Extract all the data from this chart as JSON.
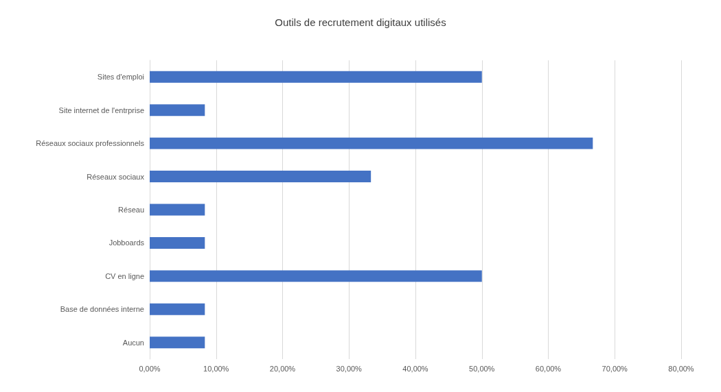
{
  "chart_data": {
    "type": "bar",
    "orientation": "horizontal",
    "title": "Outils de recrutement digitaux utilisés",
    "categories": [
      "Sites d'emploi",
      "Site internet de l'entrprise",
      "Réseaux sociaux professionnels",
      "Réseaux sociaux",
      "Réseau",
      "Jobboards",
      "CV en ligne",
      "Base de données interne",
      "Aucun"
    ],
    "values": [
      50,
      8.3,
      66.7,
      33.3,
      8.3,
      8.3,
      50,
      8.3,
      8.3
    ],
    "color": "#4472c4",
    "xlim": [
      0,
      80
    ],
    "xticks": [
      {
        "value": 0,
        "label": "0,00%"
      },
      {
        "value": 10,
        "label": "10,00%"
      },
      {
        "value": 20,
        "label": "20,00%"
      },
      {
        "value": 30,
        "label": "30,00%"
      },
      {
        "value": 40,
        "label": "40,00%"
      },
      {
        "value": 50,
        "label": "50,00%"
      },
      {
        "value": 60,
        "label": "60,00%"
      },
      {
        "value": 70,
        "label": "70,00%"
      },
      {
        "value": 80,
        "label": "80,00%"
      }
    ],
    "grid": "x"
  }
}
